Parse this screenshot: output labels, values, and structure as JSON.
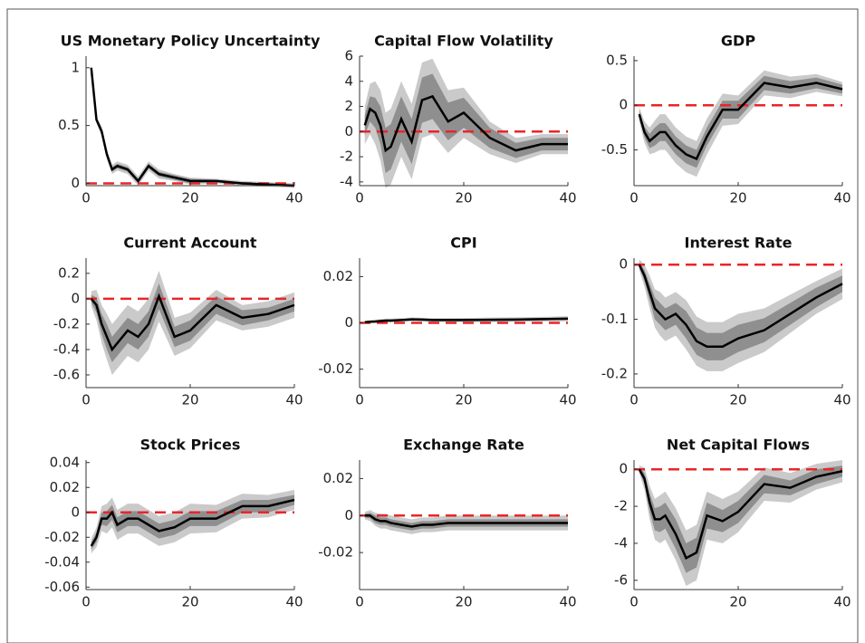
{
  "chart_data": [
    {
      "type": "line",
      "title": "US Monetary Policy Uncertainty",
      "x": [
        1,
        2,
        3,
        4,
        5,
        6,
        8,
        10,
        12,
        14,
        17,
        20,
        25,
        30,
        35,
        40
      ],
      "values": [
        1,
        0.55,
        0.45,
        0.25,
        0.12,
        0.15,
        0.12,
        0.02,
        0.15,
        0.08,
        0.05,
        0.02,
        0.02,
        0,
        -0.01,
        -0.02
      ],
      "band_inner": [
        0.01,
        0.02,
        0.02,
        0.02,
        0.02,
        0.02,
        0.02,
        0.02,
        0.02,
        0.02,
        0.02,
        0.02,
        0.01,
        0.01,
        0.01,
        0.01
      ],
      "band_outer": [
        0.02,
        0.03,
        0.04,
        0.04,
        0.04,
        0.04,
        0.04,
        0.04,
        0.04,
        0.04,
        0.03,
        0.03,
        0.02,
        0.02,
        0.02,
        0.02
      ],
      "xlim": [
        0,
        40
      ],
      "xticks": [
        0,
        20,
        40
      ],
      "ylim": [
        -0.02,
        1.1
      ],
      "yticks": [
        0,
        0.5,
        1
      ],
      "hline": 0
    },
    {
      "type": "line",
      "title": "Capital Flow Volatility",
      "x": [
        1,
        2,
        3,
        4,
        5,
        6,
        8,
        10,
        12,
        14,
        17,
        20,
        25,
        30,
        35,
        40
      ],
      "values": [
        0.5,
        1.8,
        1.5,
        0.5,
        -1.5,
        -1.2,
        1,
        -0.8,
        2.5,
        2.8,
        0.8,
        1.5,
        -0.5,
        -1.5,
        -1,
        -1
      ],
      "band_inner": [
        0.8,
        1,
        1.2,
        1.5,
        1.8,
        1.8,
        1.8,
        1.8,
        1.8,
        1.8,
        1.5,
        1.2,
        0.8,
        0.6,
        0.5,
        0.5
      ],
      "band_outer": [
        1.5,
        2,
        2.5,
        2.8,
        3,
        3,
        3,
        3,
        3,
        3,
        2.5,
        2,
        1.3,
        1,
        0.8,
        0.8
      ],
      "xlim": [
        0,
        40
      ],
      "xticks": [
        0,
        20,
        40
      ],
      "ylim": [
        -4.3,
        6
      ],
      "yticks": [
        -4,
        -2,
        0,
        2,
        4,
        6
      ],
      "hline": 0
    },
    {
      "type": "line",
      "title": "GDP",
      "x": [
        1,
        2,
        3,
        4,
        5,
        6,
        8,
        10,
        12,
        14,
        17,
        20,
        25,
        30,
        35,
        40
      ],
      "values": [
        -0.1,
        -0.3,
        -0.4,
        -0.35,
        -0.3,
        -0.3,
        -0.45,
        -0.55,
        -0.6,
        -0.35,
        -0.05,
        -0.05,
        0.25,
        0.2,
        0.25,
        0.18
      ],
      "band_inner": [
        0.04,
        0.06,
        0.08,
        0.1,
        0.1,
        0.1,
        0.1,
        0.1,
        0.1,
        0.1,
        0.1,
        0.1,
        0.08,
        0.07,
        0.06,
        0.05
      ],
      "band_outer": [
        0.08,
        0.12,
        0.15,
        0.18,
        0.2,
        0.2,
        0.2,
        0.2,
        0.2,
        0.2,
        0.18,
        0.16,
        0.14,
        0.12,
        0.1,
        0.08
      ],
      "xlim": [
        0,
        40
      ],
      "xticks": [
        0,
        20,
        40
      ],
      "ylim": [
        -0.9,
        0.55
      ],
      "yticks": [
        -0.5,
        0,
        0.5
      ],
      "hline": 0
    },
    {
      "type": "line",
      "title": "Current Account",
      "x": [
        1,
        2,
        3,
        4,
        5,
        6,
        8,
        10,
        12,
        14,
        17,
        20,
        25,
        30,
        35,
        40
      ],
      "values": [
        0,
        -0.05,
        -0.2,
        -0.3,
        -0.4,
        -0.35,
        -0.25,
        -0.3,
        -0.2,
        0.02,
        -0.3,
        -0.25,
        -0.05,
        -0.15,
        -0.12,
        -0.05
      ],
      "band_inner": [
        0.03,
        0.06,
        0.08,
        0.1,
        0.1,
        0.1,
        0.1,
        0.1,
        0.1,
        0.1,
        0.08,
        0.08,
        0.07,
        0.06,
        0.05,
        0.05
      ],
      "band_outer": [
        0.06,
        0.12,
        0.15,
        0.18,
        0.2,
        0.2,
        0.2,
        0.2,
        0.2,
        0.2,
        0.15,
        0.14,
        0.12,
        0.1,
        0.1,
        0.1
      ],
      "xlim": [
        0,
        40
      ],
      "xticks": [
        0,
        20,
        40
      ],
      "ylim": [
        -0.7,
        0.32
      ],
      "yticks": [
        -0.6,
        -0.4,
        -0.2,
        0,
        0.2
      ],
      "hline": 0
    },
    {
      "type": "line",
      "title": "CPI",
      "x": [
        1,
        2,
        3,
        4,
        5,
        6,
        8,
        10,
        12,
        14,
        17,
        20,
        25,
        30,
        35,
        40
      ],
      "values": [
        0.0003,
        0.0005,
        0.0006,
        0.0008,
        0.001,
        0.001,
        0.0012,
        0.0015,
        0.0014,
        0.0012,
        0.0012,
        0.0012,
        0.0013,
        0.0014,
        0.0016,
        0.0018
      ],
      "band_inner": [
        0.0002,
        0.0003,
        0.0004,
        0.0004,
        0.0004,
        0.0004,
        0.0004,
        0.0004,
        0.0004,
        0.0004,
        0.0004,
        0.0004,
        0.0005,
        0.0005,
        0.0005,
        0.0005
      ],
      "band_outer": [
        0.0004,
        0.0006,
        0.0007,
        0.0008,
        0.0008,
        0.0008,
        0.0008,
        0.0008,
        0.0008,
        0.0008,
        0.0008,
        0.0009,
        0.001,
        0.001,
        0.001,
        0.0011
      ],
      "xlim": [
        0,
        40
      ],
      "xticks": [
        0,
        20,
        40
      ],
      "ylim": [
        -0.028,
        0.028
      ],
      "yticks": [
        -0.02,
        0,
        0.02
      ],
      "hline": 0
    },
    {
      "type": "line",
      "title": "Interest Rate",
      "x": [
        1,
        2,
        3,
        4,
        5,
        6,
        8,
        10,
        12,
        14,
        17,
        20,
        25,
        30,
        35,
        40
      ],
      "values": [
        0,
        -0.02,
        -0.05,
        -0.08,
        -0.09,
        -0.1,
        -0.09,
        -0.11,
        -0.14,
        -0.15,
        -0.15,
        -0.135,
        -0.12,
        -0.09,
        -0.06,
        -0.035
      ],
      "band_inner": [
        0.005,
        0.01,
        0.015,
        0.02,
        0.02,
        0.02,
        0.02,
        0.025,
        0.025,
        0.025,
        0.025,
        0.025,
        0.022,
        0.02,
        0.018,
        0.015
      ],
      "band_outer": [
        0.01,
        0.02,
        0.03,
        0.035,
        0.04,
        0.04,
        0.04,
        0.045,
        0.045,
        0.045,
        0.045,
        0.045,
        0.04,
        0.035,
        0.03,
        0.028
      ],
      "xlim": [
        0,
        40
      ],
      "xticks": [
        0,
        20,
        40
      ],
      "ylim": [
        -0.225,
        0.012
      ],
      "yticks": [
        -0.2,
        -0.1,
        0
      ],
      "hline": 0
    },
    {
      "type": "line",
      "title": "Stock Prices",
      "x": [
        1,
        2,
        3,
        4,
        5,
        6,
        8,
        10,
        12,
        14,
        17,
        20,
        25,
        30,
        35,
        40
      ],
      "values": [
        -0.027,
        -0.02,
        -0.005,
        -0.005,
        0,
        -0.01,
        -0.005,
        -0.005,
        -0.01,
        -0.015,
        -0.012,
        -0.005,
        -0.005,
        0.005,
        0.005,
        0.01
      ],
      "band_inner": [
        0.003,
        0.004,
        0.005,
        0.006,
        0.006,
        0.006,
        0.006,
        0.006,
        0.006,
        0.006,
        0.006,
        0.006,
        0.006,
        0.005,
        0.005,
        0.004
      ],
      "band_outer": [
        0.006,
        0.008,
        0.01,
        0.012,
        0.012,
        0.012,
        0.012,
        0.012,
        0.012,
        0.012,
        0.012,
        0.012,
        0.011,
        0.01,
        0.009,
        0.008
      ],
      "xlim": [
        0,
        40
      ],
      "xticks": [
        0,
        20,
        40
      ],
      "ylim": [
        -0.062,
        0.042
      ],
      "yticks": [
        -0.06,
        -0.04,
        -0.02,
        0,
        0.02,
        0.04
      ],
      "hline": 0
    },
    {
      "type": "line",
      "title": "Exchange Rate",
      "x": [
        1,
        2,
        3,
        4,
        5,
        6,
        8,
        10,
        12,
        14,
        17,
        20,
        25,
        30,
        35,
        40
      ],
      "values": [
        0,
        0,
        -0.002,
        -0.003,
        -0.003,
        -0.004,
        -0.005,
        -0.006,
        -0.005,
        -0.005,
        -0.004,
        -0.004,
        -0.004,
        -0.004,
        -0.004,
        -0.004
      ],
      "band_inner": [
        0.001,
        0.0015,
        0.002,
        0.002,
        0.002,
        0.002,
        0.002,
        0.002,
        0.002,
        0.002,
        0.002,
        0.002,
        0.002,
        0.002,
        0.002,
        0.002
      ],
      "band_outer": [
        0.002,
        0.003,
        0.0035,
        0.004,
        0.004,
        0.004,
        0.004,
        0.004,
        0.004,
        0.004,
        0.004,
        0.004,
        0.004,
        0.004,
        0.004,
        0.004
      ],
      "xlim": [
        0,
        40
      ],
      "xticks": [
        0,
        20,
        40
      ],
      "ylim": [
        -0.04,
        0.03
      ],
      "yticks": [
        -0.02,
        0,
        0.02
      ],
      "hline": 0
    },
    {
      "type": "line",
      "title": "Net Capital Flows",
      "x": [
        1,
        2,
        3,
        4,
        5,
        6,
        8,
        10,
        12,
        14,
        17,
        20,
        25,
        30,
        35,
        40
      ],
      "values": [
        0,
        -0.5,
        -1.8,
        -2.7,
        -2.7,
        -2.5,
        -3.5,
        -4.8,
        -4.5,
        -2.5,
        -2.8,
        -2.3,
        -0.8,
        -1,
        -0.4,
        -0.1
      ],
      "band_inner": [
        0.1,
        0.3,
        0.5,
        0.6,
        0.7,
        0.7,
        0.8,
        0.8,
        0.8,
        0.7,
        0.6,
        0.6,
        0.5,
        0.4,
        0.4,
        0.3
      ],
      "band_outer": [
        0.2,
        0.6,
        0.9,
        1.1,
        1.3,
        1.3,
        1.4,
        1.5,
        1.5,
        1.3,
        1.2,
        1.1,
        0.9,
        0.8,
        0.7,
        0.6
      ],
      "xlim": [
        0,
        40
      ],
      "xticks": [
        0,
        20,
        40
      ],
      "ylim": [
        -6.5,
        0.5
      ],
      "yticks": [
        -6,
        -4,
        -2,
        0
      ],
      "hline": 0
    }
  ]
}
